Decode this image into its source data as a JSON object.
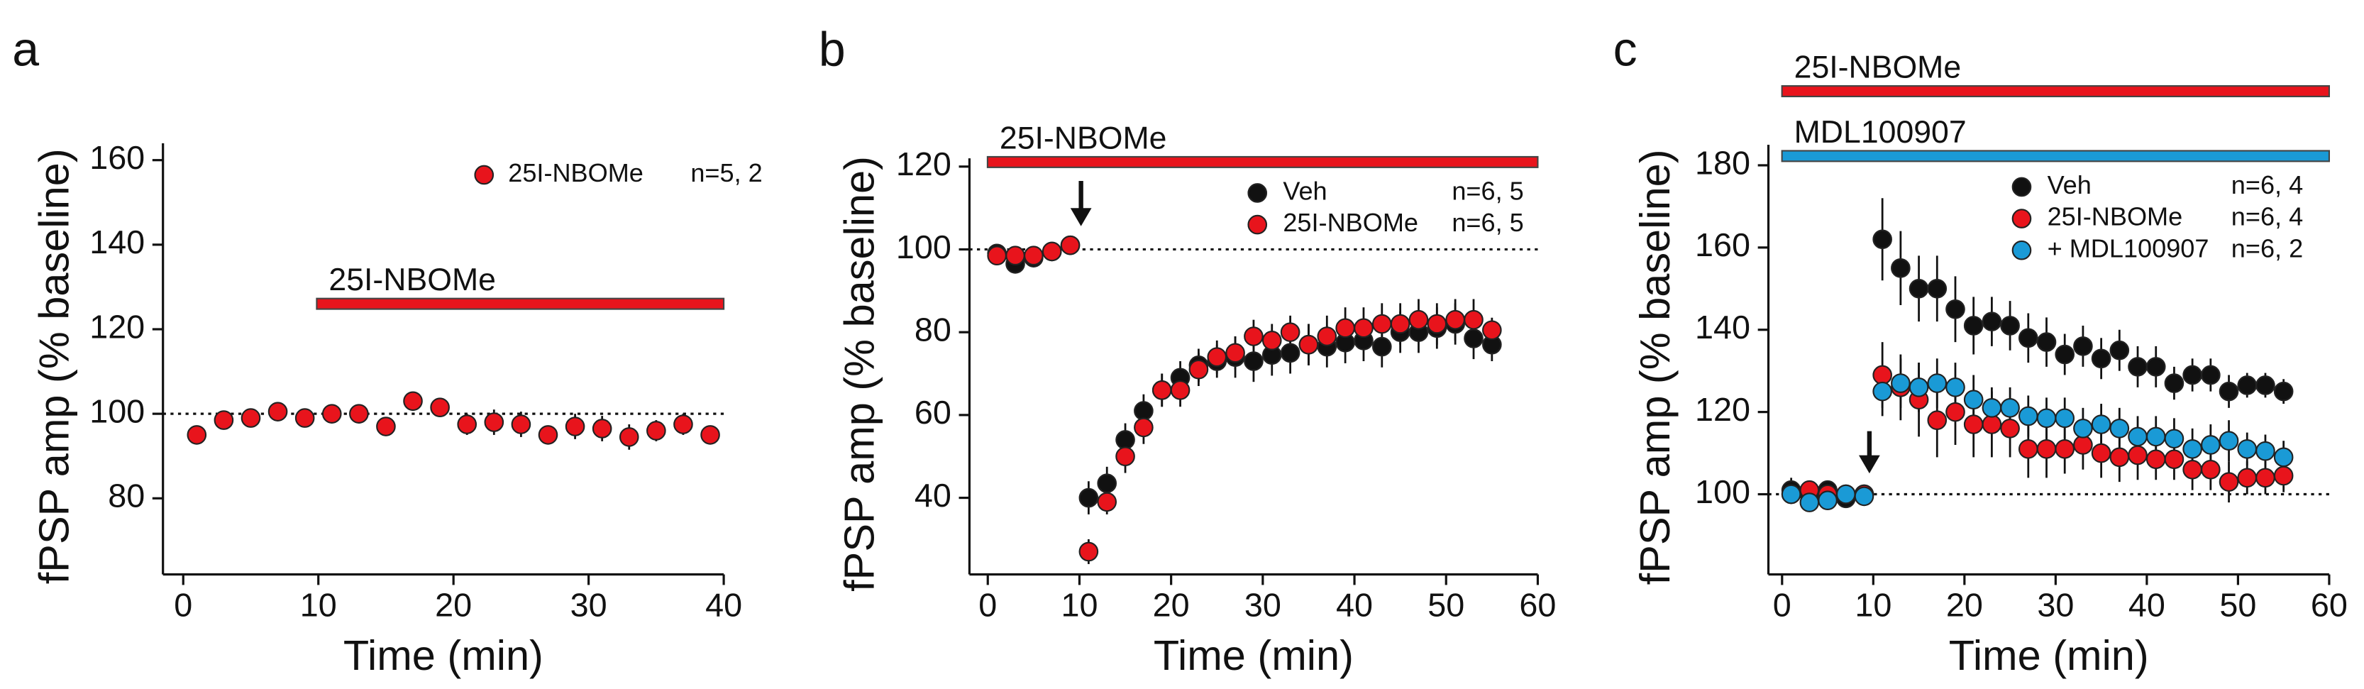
{
  "chart_data": [
    {
      "type": "scatter",
      "title": "a",
      "x_label": "Time (min)",
      "y_label": "fPSP amp (% baseline)",
      "xlim": [
        -1.5,
        40
      ],
      "ylim": [
        62,
        164
      ],
      "xticks": [
        0,
        10,
        20,
        30,
        40
      ],
      "yticks": [
        80,
        100,
        120,
        140,
        160
      ],
      "hline": 100,
      "x": [
        1,
        3,
        5,
        7,
        9,
        11,
        13,
        15,
        17,
        19,
        21,
        23,
        25,
        27,
        29,
        31,
        33,
        35,
        37,
        39
      ],
      "series": [
        {
          "name": "25I-NBOMe",
          "note": "n=5, 2",
          "color": "#e8141c",
          "values": [
            95,
            98.5,
            99,
            100.5,
            99,
            100,
            100,
            97,
            103,
            101.5,
            97.5,
            98,
            97.5,
            95,
            97,
            96.5,
            94.5,
            96,
            97.5,
            95
          ],
          "errors": [
            2,
            1.5,
            1.5,
            1.5,
            1.5,
            2,
            2,
            2,
            1.5,
            1.5,
            2.5,
            3,
            3,
            2,
            3,
            3,
            3,
            2.5,
            2.5,
            2
          ]
        }
      ],
      "annotations": [
        {
          "text": "25I-NBOMe",
          "color": "#e8141c"
        }
      ]
    },
    {
      "type": "scatter",
      "title": "b",
      "x_label": "Time (min)",
      "y_label": "fPSP amp (% baseline)",
      "xlim": [
        -2,
        60
      ],
      "ylim": [
        21.5,
        122
      ],
      "xticks": [
        0,
        10,
        20,
        30,
        40,
        50,
        60
      ],
      "yticks": [
        40,
        60,
        80,
        100,
        120
      ],
      "hline": 100,
      "x": [
        1,
        3,
        5,
        7,
        9,
        11,
        13,
        15,
        17,
        19,
        21,
        23,
        25,
        27,
        29,
        31,
        33,
        35,
        37,
        39,
        41,
        43,
        45,
        47,
        49,
        51,
        53,
        55
      ],
      "series": [
        {
          "name": "Veh",
          "note": "n=6, 5",
          "color": "#111111",
          "values": [
            99,
            96.5,
            98,
            99.5,
            101,
            40,
            43.5,
            54,
            61,
            66,
            69,
            72,
            73,
            74,
            73,
            74.5,
            75,
            77,
            76.5,
            77.5,
            78,
            76.5,
            80,
            80,
            81,
            82,
            78.5,
            77
          ],
          "errors": [
            1.5,
            2,
            1.5,
            1.5,
            1.5,
            4,
            4,
            4,
            4,
            4,
            4,
            4,
            4,
            5,
            5,
            5,
            5,
            5,
            5,
            5,
            5,
            5,
            5,
            5,
            5,
            5,
            5,
            4
          ]
        },
        {
          "name": "25I-NBOMe",
          "note": "n=6, 5",
          "color": "#e8141c",
          "values": [
            98.5,
            98.5,
            98.5,
            99.5,
            101,
            27,
            39,
            50,
            57,
            66,
            66,
            71,
            74,
            75,
            79,
            78,
            80,
            77,
            79,
            81,
            81,
            82,
            82,
            83,
            82,
            83,
            83,
            80.5
          ],
          "errors": [
            1.5,
            1.5,
            1.5,
            1.5,
            1.5,
            3,
            3,
            4,
            4,
            4,
            4,
            4,
            4,
            4,
            4,
            4,
            4,
            5,
            5,
            5,
            5,
            5,
            5,
            5,
            5,
            5,
            5,
            3
          ]
        }
      ],
      "annotations": [
        {
          "text": "25I-NBOMe",
          "color": "#e8141c"
        }
      ]
    },
    {
      "type": "scatter",
      "title": "c",
      "x_label": "Time (min)",
      "y_label": "fPSP amp (% baseline)",
      "xlim": [
        -1.5,
        60
      ],
      "ylim": [
        80.5,
        185
      ],
      "xticks": [
        0,
        10,
        20,
        30,
        40,
        50,
        60
      ],
      "yticks": [
        100,
        120,
        140,
        160,
        180
      ],
      "hline": 100,
      "x": [
        1,
        3,
        5,
        7,
        9,
        11,
        13,
        15,
        17,
        19,
        21,
        23,
        25,
        27,
        29,
        31,
        33,
        35,
        37,
        39,
        41,
        43,
        45,
        47,
        49,
        51,
        53,
        55
      ],
      "series": [
        {
          "name": "Veh",
          "note": "n=6, 4",
          "color": "#111111",
          "values": [
            101,
            100,
            101,
            99,
            100,
            162,
            155,
            150,
            150,
            145,
            141,
            142,
            141,
            138,
            137,
            134,
            136,
            133,
            135,
            131,
            131,
            127,
            129,
            129,
            125,
            126.5,
            126.5,
            125
          ],
          "errors": [
            3,
            2,
            2,
            2,
            2,
            10,
            9,
            8,
            8,
            8,
            7,
            6,
            6,
            6,
            6,
            5,
            5,
            5,
            5,
            5,
            5,
            4,
            4,
            4,
            4,
            3,
            3,
            3
          ]
        },
        {
          "name": "25I-NBOMe",
          "note": "n=6, 4",
          "color": "#e8141c",
          "values": [
            100,
            101,
            100,
            100,
            100,
            129,
            126,
            123,
            118,
            120,
            117,
            117,
            116,
            111,
            111,
            111,
            112,
            110,
            109,
            109.5,
            108.5,
            108.5,
            106,
            106,
            103,
            104,
            104,
            104.5
          ],
          "errors": [
            2,
            2,
            2,
            2,
            2,
            8,
            8,
            9,
            9,
            8,
            8,
            8,
            7,
            7,
            7,
            6,
            6,
            6,
            6,
            6,
            5,
            5,
            5,
            5,
            5,
            4,
            4,
            4
          ]
        },
        {
          "name": "+ MDL100907",
          "note": "n=6, 2",
          "color": "#1a9ad6",
          "values": [
            100,
            98,
            98.5,
            100,
            99.5,
            125,
            127,
            126,
            127,
            126,
            123,
            121,
            121,
            119,
            118.5,
            118.5,
            116,
            117,
            116,
            114,
            114,
            113.5,
            111,
            112,
            113,
            111,
            110.5,
            109
          ],
          "errors": [
            2,
            2,
            2,
            2,
            2,
            6,
            6,
            6,
            6,
            6,
            6,
            5,
            5,
            5,
            5,
            5,
            5,
            5,
            5,
            5,
            5,
            5,
            5,
            5,
            5,
            4,
            4,
            4
          ]
        }
      ],
      "annotations": [
        {
          "text": "25I-NBOMe",
          "color": "#e8141c"
        },
        {
          "text": "MDL100907",
          "color": "#1a9ad6"
        }
      ]
    }
  ]
}
